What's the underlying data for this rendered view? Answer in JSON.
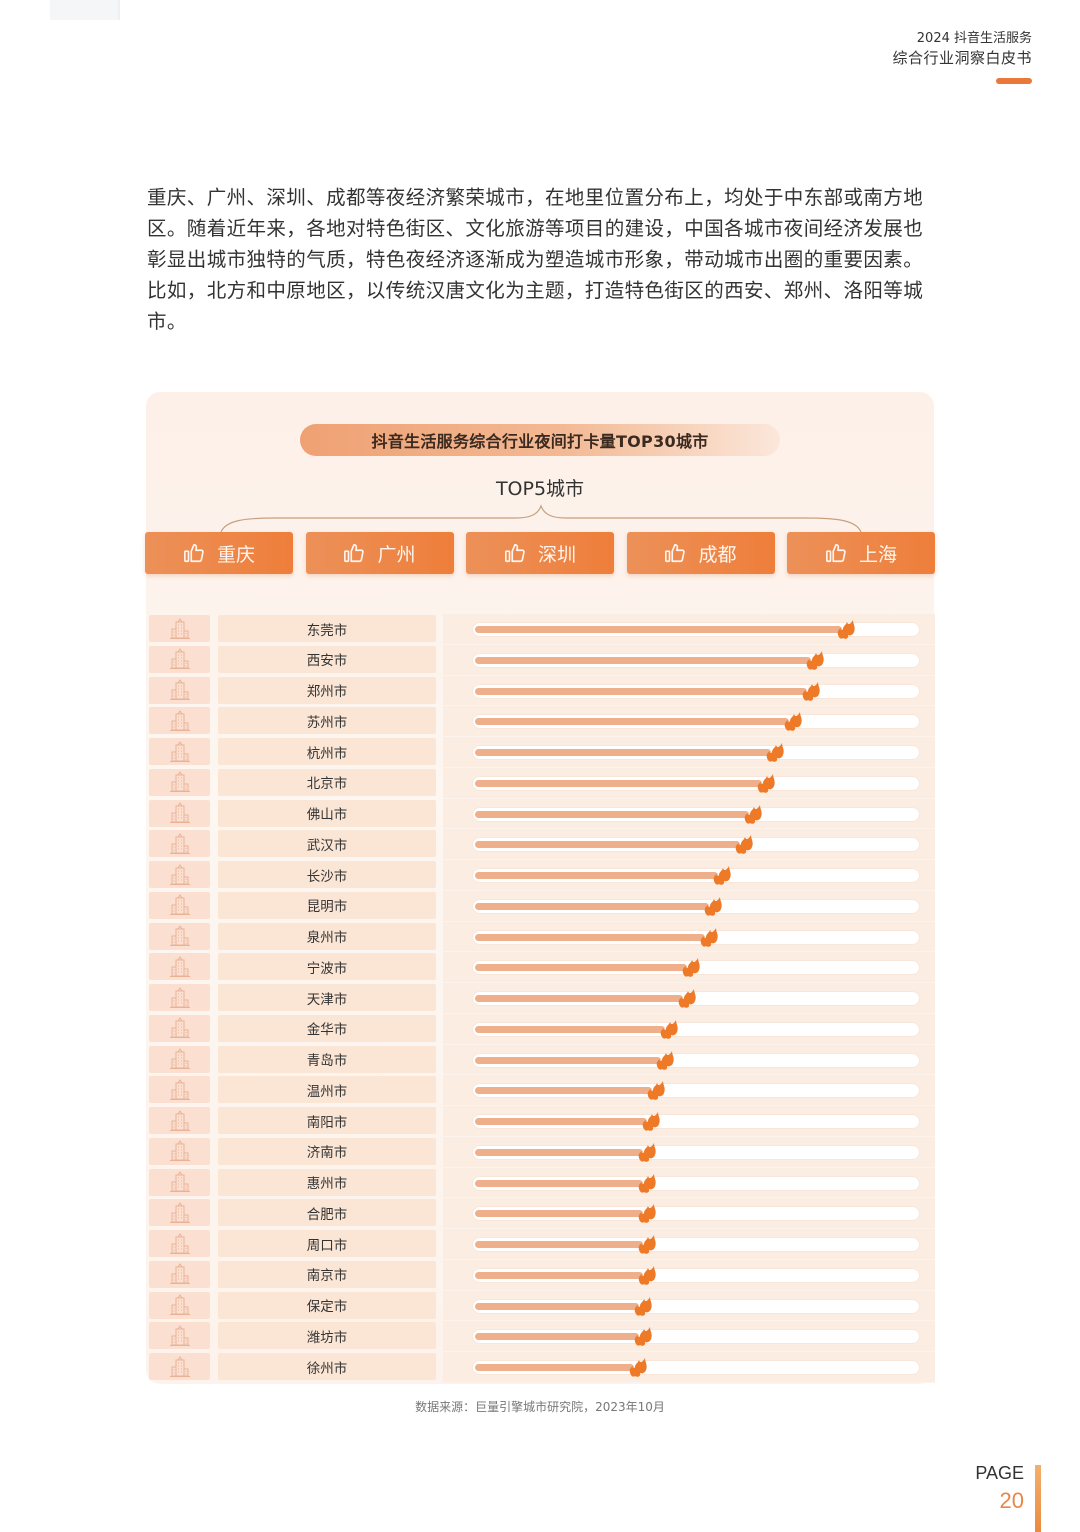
{
  "header": {
    "line1": "2024 抖音生活服务",
    "line2": "综合行业洞察白皮书",
    "accent_color": "#e9783a"
  },
  "paragraph": "重庆、广州、深圳、成都等夜经济繁荣城市，在地里位置分布上，均处于中东部或南方地区。随着近年来，各地对特色街区、文化旅游等项目的建设，中国各城市夜间经济发展也彰显出城市独特的气质，特色夜经济逐渐成为塑造城市形象，带动城市出圈的重要因素。比如，北方和中原地区，以传统汉唐文化为主题，打造特色街区的西安、郑州、洛阳等城市。",
  "panel": {
    "title": "抖音生活服务综合行业夜间打卡量TOP30城市",
    "top5_label": "TOP5城市",
    "top5": [
      {
        "name": "重庆",
        "icon": "thumbs-up-icon"
      },
      {
        "name": "广州",
        "icon": "thumbs-up-icon"
      },
      {
        "name": "深圳",
        "icon": "thumbs-up-icon"
      },
      {
        "name": "成都",
        "icon": "thumbs-up-icon"
      },
      {
        "name": "上海",
        "icon": "thumbs-up-icon"
      }
    ],
    "row_icon": "building-icon",
    "marker_icon": "flame-icon",
    "bar_color": "#eeaf8a",
    "marker_color": "#ee7a28"
  },
  "chart_data": {
    "type": "bar",
    "orientation": "horizontal",
    "title": "抖音生活服务综合行业夜间打卡量TOP30城市",
    "subtitle": "TOP5城市: 重庆, 广州, 深圳, 成都, 上海 (ranks 1-5, no bars shown)",
    "xlabel": "",
    "ylabel": "",
    "value_scale": "relative (% of track length, no axis shown)",
    "xlim": [
      0,
      100
    ],
    "grid": false,
    "categories": [
      "东莞市",
      "西安市",
      "郑州市",
      "苏州市",
      "杭州市",
      "北京市",
      "佛山市",
      "武汉市",
      "长沙市",
      "昆明市",
      "泉州市",
      "宁波市",
      "天津市",
      "金华市",
      "青岛市",
      "温州市",
      "南阳市",
      "济南市",
      "惠州市",
      "合肥市",
      "周口市",
      "南京市",
      "保定市",
      "潍坊市",
      "徐州市"
    ],
    "values": [
      83,
      76,
      75,
      71,
      67,
      65,
      62,
      60,
      55,
      53,
      52,
      48,
      47,
      43,
      42,
      40,
      39,
      38,
      38,
      38,
      38,
      38,
      37,
      37,
      36
    ]
  },
  "source": "数据来源：巨量引擎城市研究院，2023年10月",
  "footer": {
    "page_label": "PAGE",
    "page_number": "20"
  }
}
